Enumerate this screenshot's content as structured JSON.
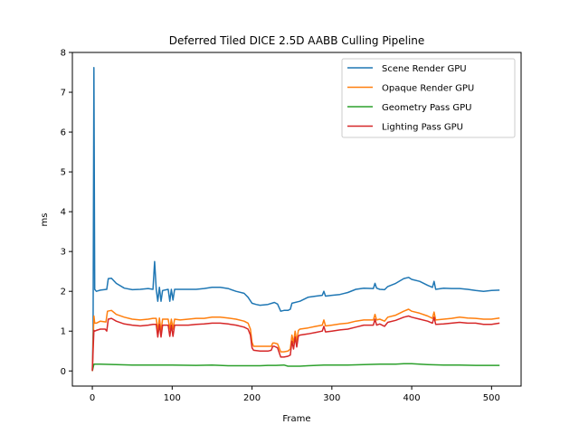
{
  "chart_data": {
    "type": "line",
    "title": "Deferred Tiled DICE 2.5D AABB Culling Pipeline",
    "xlabel": "Frame",
    "ylabel": "ms",
    "xlim": [
      -25,
      537
    ],
    "ylim": [
      -0.38,
      8.0
    ],
    "xticks": [
      0,
      100,
      200,
      300,
      400,
      500
    ],
    "yticks": [
      0,
      1,
      2,
      3,
      4,
      5,
      6,
      7,
      8
    ],
    "grid": false,
    "legend_position": "top-right",
    "series": [
      {
        "name": "Scene Render GPU",
        "color": "#1f77b4",
        "points": [
          [
            0,
            0.02
          ],
          [
            1,
            1.0
          ],
          [
            2,
            7.62
          ],
          [
            3,
            2.05
          ],
          [
            5,
            2.0
          ],
          [
            10,
            2.03
          ],
          [
            18,
            2.05
          ],
          [
            20,
            2.32
          ],
          [
            24,
            2.33
          ],
          [
            30,
            2.2
          ],
          [
            40,
            2.08
          ],
          [
            50,
            2.04
          ],
          [
            60,
            2.05
          ],
          [
            70,
            2.07
          ],
          [
            76,
            2.05
          ],
          [
            78,
            2.75
          ],
          [
            80,
            2.05
          ],
          [
            82,
            1.75
          ],
          [
            84,
            2.1
          ],
          [
            86,
            1.75
          ],
          [
            88,
            2.02
          ],
          [
            95,
            2.05
          ],
          [
            97,
            1.75
          ],
          [
            99,
            2.05
          ],
          [
            101,
            1.78
          ],
          [
            103,
            2.05
          ],
          [
            110,
            2.05
          ],
          [
            120,
            2.05
          ],
          [
            130,
            2.05
          ],
          [
            140,
            2.07
          ],
          [
            150,
            2.1
          ],
          [
            160,
            2.1
          ],
          [
            170,
            2.07
          ],
          [
            180,
            2.0
          ],
          [
            190,
            1.95
          ],
          [
            195,
            1.85
          ],
          [
            200,
            1.7
          ],
          [
            205,
            1.67
          ],
          [
            210,
            1.65
          ],
          [
            220,
            1.67
          ],
          [
            228,
            1.72
          ],
          [
            232,
            1.68
          ],
          [
            236,
            1.5
          ],
          [
            240,
            1.52
          ],
          [
            245,
            1.52
          ],
          [
            248,
            1.55
          ],
          [
            250,
            1.7
          ],
          [
            260,
            1.75
          ],
          [
            270,
            1.85
          ],
          [
            280,
            1.88
          ],
          [
            288,
            1.9
          ],
          [
            290,
            2.0
          ],
          [
            292,
            1.88
          ],
          [
            300,
            1.9
          ],
          [
            310,
            1.92
          ],
          [
            320,
            1.97
          ],
          [
            330,
            2.05
          ],
          [
            340,
            2.08
          ],
          [
            352,
            2.07
          ],
          [
            354,
            2.2
          ],
          [
            356,
            2.08
          ],
          [
            360,
            2.05
          ],
          [
            366,
            2.04
          ],
          [
            370,
            2.12
          ],
          [
            380,
            2.2
          ],
          [
            390,
            2.32
          ],
          [
            396,
            2.35
          ],
          [
            400,
            2.3
          ],
          [
            410,
            2.25
          ],
          [
            420,
            2.15
          ],
          [
            426,
            2.1
          ],
          [
            428,
            2.25
          ],
          [
            430,
            2.05
          ],
          [
            440,
            2.08
          ],
          [
            450,
            2.07
          ],
          [
            460,
            2.07
          ],
          [
            470,
            2.05
          ],
          [
            480,
            2.02
          ],
          [
            490,
            2.0
          ],
          [
            500,
            2.02
          ],
          [
            510,
            2.03
          ]
        ]
      },
      {
        "name": "Opaque Render GPU",
        "color": "#ff7f0e",
        "points": [
          [
            0,
            0.0
          ],
          [
            1,
            0.7
          ],
          [
            2,
            1.38
          ],
          [
            3,
            1.2
          ],
          [
            5,
            1.2
          ],
          [
            10,
            1.25
          ],
          [
            17,
            1.23
          ],
          [
            19,
            1.5
          ],
          [
            24,
            1.52
          ],
          [
            30,
            1.42
          ],
          [
            40,
            1.35
          ],
          [
            50,
            1.3
          ],
          [
            60,
            1.28
          ],
          [
            70,
            1.3
          ],
          [
            76,
            1.32
          ],
          [
            78,
            1.32
          ],
          [
            80,
            1.32
          ],
          [
            82,
            1.0
          ],
          [
            84,
            1.33
          ],
          [
            86,
            1.0
          ],
          [
            88,
            1.3
          ],
          [
            95,
            1.3
          ],
          [
            97,
            1.05
          ],
          [
            99,
            1.3
          ],
          [
            101,
            1.05
          ],
          [
            103,
            1.3
          ],
          [
            110,
            1.28
          ],
          [
            120,
            1.3
          ],
          [
            130,
            1.32
          ],
          [
            140,
            1.32
          ],
          [
            150,
            1.35
          ],
          [
            160,
            1.35
          ],
          [
            170,
            1.33
          ],
          [
            180,
            1.3
          ],
          [
            190,
            1.25
          ],
          [
            195,
            1.2
          ],
          [
            198,
            1.05
          ],
          [
            200,
            0.72
          ],
          [
            202,
            0.62
          ],
          [
            210,
            0.62
          ],
          [
            220,
            0.62
          ],
          [
            224,
            0.62
          ],
          [
            226,
            0.7
          ],
          [
            228,
            0.7
          ],
          [
            232,
            0.68
          ],
          [
            236,
            0.48
          ],
          [
            240,
            0.48
          ],
          [
            245,
            0.5
          ],
          [
            248,
            0.55
          ],
          [
            250,
            0.9
          ],
          [
            252,
            0.7
          ],
          [
            254,
            1.0
          ],
          [
            256,
            0.75
          ],
          [
            258,
            1.02
          ],
          [
            260,
            1.05
          ],
          [
            270,
            1.08
          ],
          [
            280,
            1.12
          ],
          [
            288,
            1.15
          ],
          [
            290,
            1.28
          ],
          [
            292,
            1.13
          ],
          [
            300,
            1.15
          ],
          [
            310,
            1.18
          ],
          [
            320,
            1.2
          ],
          [
            330,
            1.25
          ],
          [
            340,
            1.28
          ],
          [
            352,
            1.28
          ],
          [
            354,
            1.42
          ],
          [
            356,
            1.28
          ],
          [
            360,
            1.3
          ],
          [
            366,
            1.25
          ],
          [
            370,
            1.35
          ],
          [
            380,
            1.4
          ],
          [
            390,
            1.5
          ],
          [
            396,
            1.55
          ],
          [
            400,
            1.5
          ],
          [
            410,
            1.45
          ],
          [
            420,
            1.38
          ],
          [
            426,
            1.32
          ],
          [
            428,
            1.48
          ],
          [
            430,
            1.28
          ],
          [
            440,
            1.3
          ],
          [
            450,
            1.32
          ],
          [
            460,
            1.35
          ],
          [
            470,
            1.33
          ],
          [
            480,
            1.32
          ],
          [
            490,
            1.3
          ],
          [
            500,
            1.3
          ],
          [
            510,
            1.33
          ]
        ]
      },
      {
        "name": "Geometry Pass GPU",
        "color": "#2ca02c",
        "points": [
          [
            0,
            0.0
          ],
          [
            1,
            0.08
          ],
          [
            2,
            0.17
          ],
          [
            10,
            0.17
          ],
          [
            30,
            0.16
          ],
          [
            50,
            0.15
          ],
          [
            70,
            0.15
          ],
          [
            100,
            0.15
          ],
          [
            130,
            0.14
          ],
          [
            150,
            0.15
          ],
          [
            160,
            0.14
          ],
          [
            170,
            0.13
          ],
          [
            180,
            0.13
          ],
          [
            190,
            0.13
          ],
          [
            200,
            0.13
          ],
          [
            210,
            0.13
          ],
          [
            220,
            0.14
          ],
          [
            230,
            0.14
          ],
          [
            240,
            0.15
          ],
          [
            245,
            0.12
          ],
          [
            250,
            0.12
          ],
          [
            260,
            0.12
          ],
          [
            270,
            0.13
          ],
          [
            280,
            0.14
          ],
          [
            290,
            0.15
          ],
          [
            300,
            0.15
          ],
          [
            320,
            0.15
          ],
          [
            340,
            0.16
          ],
          [
            360,
            0.17
          ],
          [
            380,
            0.17
          ],
          [
            390,
            0.18
          ],
          [
            400,
            0.18
          ],
          [
            410,
            0.17
          ],
          [
            420,
            0.16
          ],
          [
            440,
            0.15
          ],
          [
            460,
            0.15
          ],
          [
            480,
            0.14
          ],
          [
            500,
            0.14
          ],
          [
            510,
            0.14
          ]
        ]
      },
      {
        "name": "Lighting Pass GPU",
        "color": "#d62728",
        "points": [
          [
            0,
            0.0
          ],
          [
            1,
            0.5
          ],
          [
            2,
            1.02
          ],
          [
            3,
            1.0
          ],
          [
            5,
            1.02
          ],
          [
            10,
            1.05
          ],
          [
            16,
            1.05
          ],
          [
            18,
            1.0
          ],
          [
            20,
            1.3
          ],
          [
            24,
            1.32
          ],
          [
            30,
            1.25
          ],
          [
            40,
            1.18
          ],
          [
            50,
            1.15
          ],
          [
            60,
            1.13
          ],
          [
            70,
            1.15
          ],
          [
            76,
            1.17
          ],
          [
            80,
            1.17
          ],
          [
            82,
            0.85
          ],
          [
            84,
            1.17
          ],
          [
            86,
            0.85
          ],
          [
            88,
            1.15
          ],
          [
            95,
            1.15
          ],
          [
            97,
            0.87
          ],
          [
            99,
            1.15
          ],
          [
            101,
            0.87
          ],
          [
            103,
            1.15
          ],
          [
            110,
            1.15
          ],
          [
            120,
            1.15
          ],
          [
            130,
            1.17
          ],
          [
            140,
            1.18
          ],
          [
            150,
            1.2
          ],
          [
            160,
            1.2
          ],
          [
            170,
            1.18
          ],
          [
            180,
            1.15
          ],
          [
            190,
            1.1
          ],
          [
            195,
            1.05
          ],
          [
            198,
            0.9
          ],
          [
            200,
            0.58
          ],
          [
            202,
            0.52
          ],
          [
            210,
            0.5
          ],
          [
            220,
            0.5
          ],
          [
            224,
            0.52
          ],
          [
            226,
            0.62
          ],
          [
            228,
            0.62
          ],
          [
            232,
            0.58
          ],
          [
            236,
            0.35
          ],
          [
            240,
            0.35
          ],
          [
            245,
            0.37
          ],
          [
            248,
            0.4
          ],
          [
            250,
            0.75
          ],
          [
            252,
            0.55
          ],
          [
            254,
            0.85
          ],
          [
            256,
            0.6
          ],
          [
            258,
            0.88
          ],
          [
            260,
            0.9
          ],
          [
            270,
            0.93
          ],
          [
            280,
            0.97
          ],
          [
            288,
            1.0
          ],
          [
            290,
            1.12
          ],
          [
            292,
            0.98
          ],
          [
            300,
            1.0
          ],
          [
            310,
            1.03
          ],
          [
            320,
            1.05
          ],
          [
            330,
            1.1
          ],
          [
            340,
            1.15
          ],
          [
            352,
            1.15
          ],
          [
            354,
            1.3
          ],
          [
            356,
            1.15
          ],
          [
            360,
            1.18
          ],
          [
            366,
            1.12
          ],
          [
            370,
            1.22
          ],
          [
            380,
            1.27
          ],
          [
            390,
            1.35
          ],
          [
            396,
            1.38
          ],
          [
            400,
            1.35
          ],
          [
            410,
            1.3
          ],
          [
            420,
            1.25
          ],
          [
            426,
            1.2
          ],
          [
            428,
            1.35
          ],
          [
            430,
            1.17
          ],
          [
            440,
            1.18
          ],
          [
            450,
            1.2
          ],
          [
            460,
            1.22
          ],
          [
            470,
            1.2
          ],
          [
            480,
            1.2
          ],
          [
            490,
            1.17
          ],
          [
            500,
            1.17
          ],
          [
            510,
            1.2
          ]
        ]
      }
    ]
  }
}
